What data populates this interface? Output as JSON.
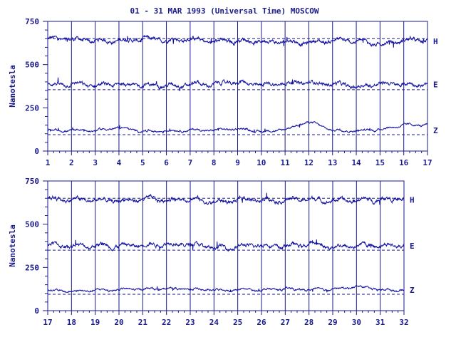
{
  "title": "01 - 31 MAR 1993 (Universal Time) MOSCOW",
  "colors": {
    "ink": "#1a1a8c",
    "trace": "#1010a0",
    "background": "#ffffff"
  },
  "chart_data": [
    {
      "type": "line",
      "ylabel": "Nanotesla",
      "ylim": [
        0,
        750
      ],
      "yticks": [
        "0",
        "250",
        "500",
        "750"
      ],
      "xlim": [
        1,
        17
      ],
      "xticks": [
        "1",
        "2",
        "3",
        "4",
        "5",
        "6",
        "7",
        "8",
        "9",
        "10",
        "11",
        "12",
        "13",
        "14",
        "15",
        "16",
        "17"
      ],
      "grid": "vertical lines at each day",
      "series": [
        {
          "name": "H",
          "baseline": 650,
          "level": 635,
          "daily_mean": [
            648,
            645,
            636,
            640,
            646,
            642,
            648,
            630,
            640,
            635,
            632,
            628,
            640,
            635,
            618,
            640
          ]
        },
        {
          "name": "E",
          "baseline": 355,
          "level": 385,
          "daily_mean": [
            382,
            390,
            378,
            388,
            380,
            378,
            385,
            385,
            400,
            380,
            392,
            395,
            388,
            372,
            390,
            385
          ]
        },
        {
          "name": "Z",
          "baseline": 95,
          "level": 120,
          "daily_mean": [
            118,
            120,
            118,
            135,
            115,
            118,
            122,
            120,
            130,
            112,
            125,
            170,
            120,
            118,
            125,
            150
          ]
        }
      ]
    },
    {
      "type": "line",
      "ylabel": "Nanotesla",
      "ylim": [
        0,
        750
      ],
      "yticks": [
        "0",
        "250",
        "500",
        "750"
      ],
      "xlim": [
        17,
        32
      ],
      "xticks": [
        "17",
        "18",
        "19",
        "20",
        "21",
        "22",
        "23",
        "24",
        "25",
        "26",
        "27",
        "28",
        "29",
        "30",
        "31",
        "32"
      ],
      "grid": "vertical lines at each day",
      "series": [
        {
          "name": "H",
          "baseline": 650,
          "level": 640,
          "daily_mean": [
            650,
            642,
            638,
            635,
            645,
            640,
            648,
            625,
            640,
            645,
            640,
            645,
            635,
            638,
            645
          ]
        },
        {
          "name": "E",
          "baseline": 350,
          "level": 375,
          "daily_mean": [
            385,
            372,
            378,
            375,
            380,
            390,
            385,
            365,
            370,
            378,
            372,
            385,
            370,
            375,
            378
          ]
        },
        {
          "name": "Z",
          "baseline": 95,
          "level": 120,
          "daily_mean": [
            120,
            110,
            118,
            122,
            125,
            128,
            125,
            118,
            122,
            120,
            125,
            120,
            122,
            140,
            120
          ]
        }
      ]
    }
  ]
}
